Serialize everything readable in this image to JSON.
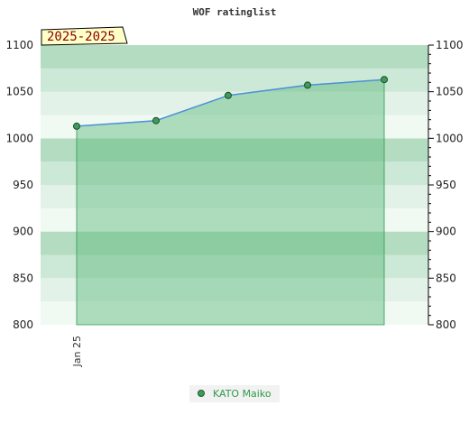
{
  "chart_data": {
    "type": "line",
    "title": "WOF ratinglist",
    "period_label": "2025-2025",
    "x": [
      "Jan 25",
      "",
      "",
      "",
      ""
    ],
    "x_tick_labels": [
      "Jan 25"
    ],
    "series": [
      {
        "name": "KATO Maiko",
        "values": [
          1013,
          1019,
          1046,
          1057,
          1063
        ]
      }
    ],
    "ylim": [
      800,
      1100
    ],
    "y_ticks": [
      800,
      850,
      900,
      950,
      1000,
      1050,
      1100
    ],
    "grid": "horizontal bands",
    "legend": "bottom-center",
    "xlabel": "",
    "ylabel": ""
  },
  "colors": {
    "line": "#4a90d9",
    "marker_fill": "#3c9c5a",
    "area_fill": "#5cb87a",
    "band_dark": "#b3dcc0",
    "band_mid": "#cce8d6",
    "band_light": "#e2f2e8",
    "band_lightest": "#f1f9f3",
    "badge_bg": "#ffffc8",
    "badge_text": "#8b0000",
    "legend_text": "#2e9a4a"
  }
}
